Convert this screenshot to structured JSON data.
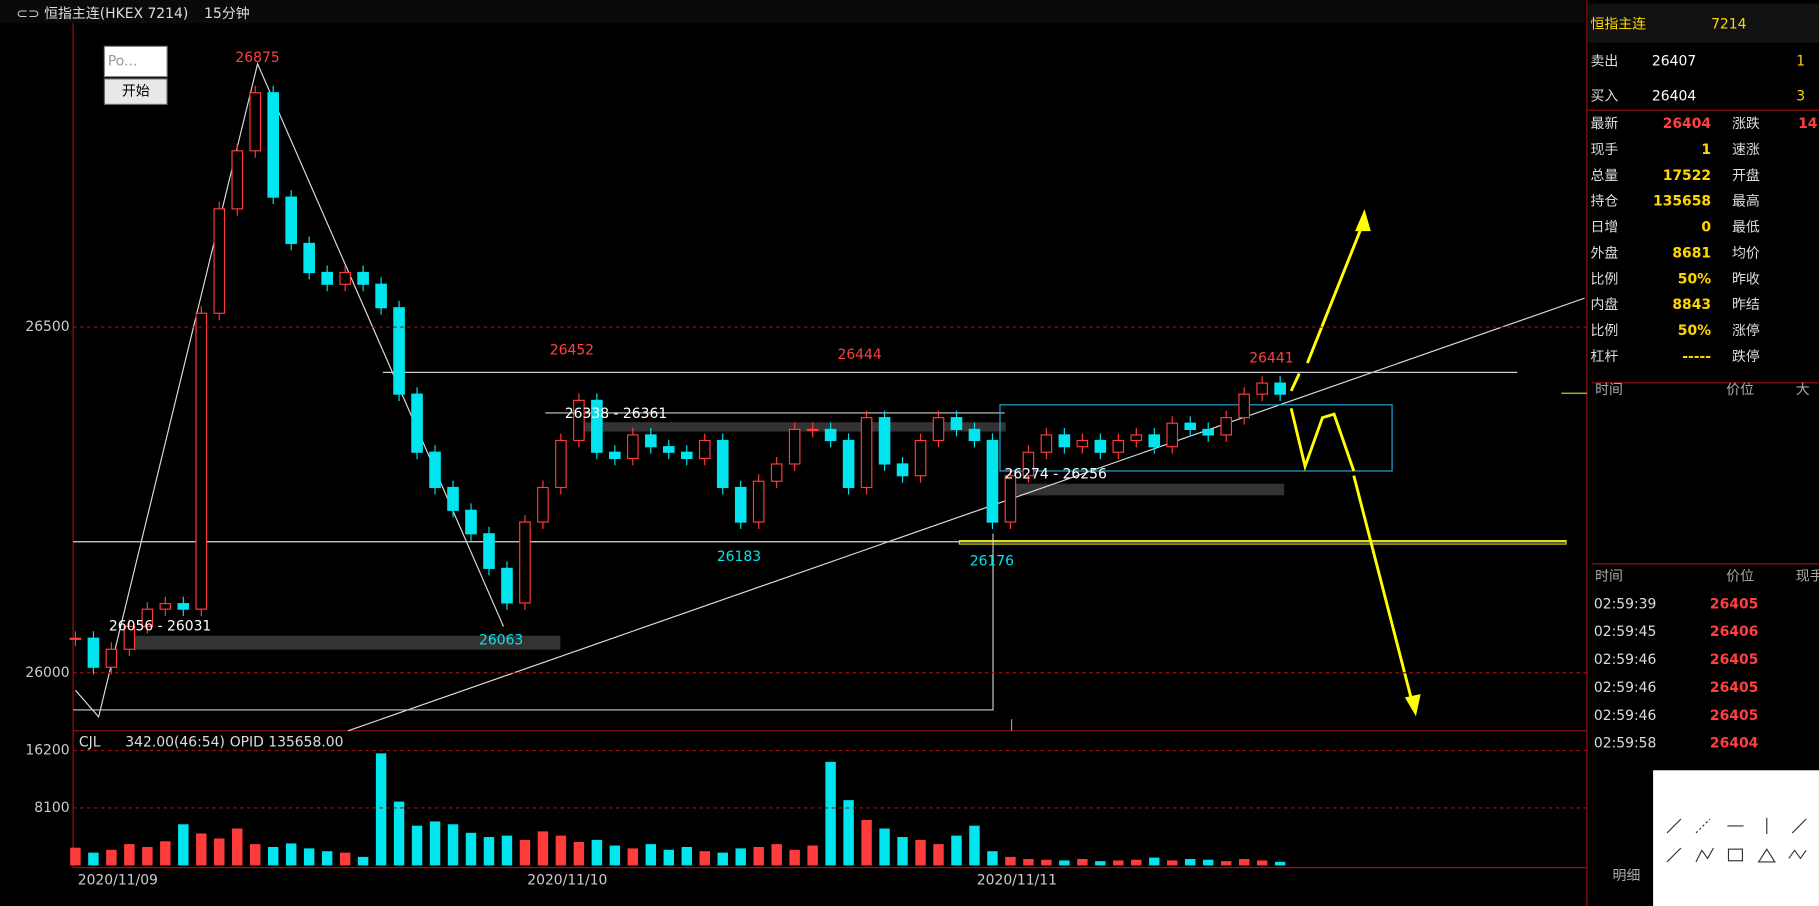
{
  "header": {
    "symbol": "恒指主连(HKEX 7214)",
    "period": "15分钟"
  },
  "widget": {
    "input": "Po...",
    "button": "开始"
  },
  "chart_data": {
    "type": "candlestick",
    "categories": [
      "2020/11/09",
      null,
      null,
      null,
      null,
      null,
      null,
      null,
      null,
      null,
      null,
      null,
      null,
      null,
      null,
      null,
      null,
      null,
      null,
      null,
      null,
      null,
      null,
      null,
      null,
      "2020/11/10",
      null,
      null,
      null,
      null,
      null,
      null,
      null,
      null,
      null,
      null,
      null,
      null,
      null,
      null,
      null,
      null,
      null,
      null,
      null,
      null,
      null,
      null,
      null,
      null,
      "2020/11/11",
      null,
      null,
      null,
      null,
      null,
      null,
      null,
      null,
      null,
      null,
      null,
      null,
      null,
      null,
      null,
      null,
      null
    ],
    "close": [
      26050,
      26008,
      26034,
      26067,
      26092,
      26100,
      26092,
      26520,
      26671,
      26755,
      26839,
      26688,
      26621,
      26579,
      26562,
      26579,
      26562,
      26528,
      26403,
      26319,
      26268,
      26235,
      26201,
      26151,
      26101,
      26218,
      26268,
      26336,
      26394,
      26319,
      26310,
      26344,
      26327,
      26319,
      26310,
      26336,
      26268,
      26218,
      26277,
      26302,
      26352,
      26352,
      26336,
      26268,
      26369,
      26302,
      26285,
      26336,
      26369,
      26352,
      26336,
      26218,
      26285,
      26319,
      26344,
      26327,
      26336,
      26319,
      26336,
      26344,
      26327,
      26361,
      26352,
      26344,
      26369,
      26403,
      26419,
      26403
    ],
    "volume": [
      2500,
      1800,
      2200,
      3000,
      2600,
      3400,
      5800,
      4500,
      3800,
      5200,
      3000,
      2600,
      3100,
      2400,
      2000,
      1800,
      1200,
      15800,
      9000,
      5600,
      6200,
      5800,
      4600,
      4000,
      4200,
      3600,
      4800,
      4200,
      3300,
      3600,
      2800,
      2400,
      3000,
      2200,
      2600,
      2000,
      1800,
      2400,
      2600,
      3000,
      2200,
      2800,
      14600,
      9200,
      6400,
      5200,
      4000,
      3600,
      3000,
      4200,
      5600,
      2000,
      1200,
      900,
      800,
      700,
      900,
      600,
      700,
      800,
      1100,
      700,
      900,
      800,
      600,
      900,
      700,
      500
    ],
    "up_color": "#ff3c3c",
    "down_color": "#00e5ee",
    "ylim": [
      25916,
      26953
    ],
    "yticks": [
      26000,
      26500
    ],
    "volume_ylim": [
      0,
      18650
    ],
    "volume_yticks": [
      16200,
      8100
    ],
    "grid": true,
    "annotations": [
      {
        "text": "26875",
        "color": "#ff4040"
      },
      {
        "text": "26452",
        "color": "#ff4040"
      },
      {
        "text": "26444",
        "color": "#ff4040"
      },
      {
        "text": "26441",
        "color": "#ff4040"
      },
      {
        "text": "26063",
        "color": "#00e5ee"
      },
      {
        "text": "26183",
        "color": "#00e5ee"
      },
      {
        "text": "26176",
        "color": "#00e5ee"
      },
      {
        "text": "26056 - 26031",
        "color": "#ffffff"
      },
      {
        "text": "26338 - 26361",
        "color": "#ffffff"
      },
      {
        "text": "26274 - 26256",
        "color": "#ffffff"
      }
    ]
  },
  "volume_header": {
    "indicator": "CJL",
    "value": "342.00(46:54)",
    "opid": "OPID 135658.00"
  },
  "quote": {
    "title": "恒指主连",
    "code": "7214",
    "ask": {
      "label": "卖出",
      "price": "26407",
      "size": "1"
    },
    "bid": {
      "label": "买入",
      "price": "26404",
      "size": "3"
    },
    "rows": [
      [
        "最新",
        "26404",
        "涨跌",
        "14"
      ],
      [
        "现手",
        "1",
        "速涨",
        ""
      ],
      [
        "总量",
        "17522",
        "开盘",
        ""
      ],
      [
        "持仓",
        "135658",
        "最高",
        ""
      ],
      [
        "日增",
        "0",
        "最低",
        ""
      ],
      [
        "外盘",
        "8681",
        "均价",
        ""
      ],
      [
        "比例",
        "50%",
        "昨收",
        ""
      ],
      [
        "内盘",
        "8843",
        "昨结",
        ""
      ],
      [
        "比例",
        "50%",
        "涨停",
        ""
      ],
      [
        "杠杆",
        "-----",
        "跌停",
        ""
      ]
    ]
  },
  "detail_header": [
    "时间",
    "价位",
    "大"
  ],
  "tick_header": [
    "时间",
    "价位",
    "现手"
  ],
  "ticks": [
    [
      "02:59:39",
      "26405"
    ],
    [
      "02:59:45",
      "26406"
    ],
    [
      "02:59:46",
      "26405"
    ],
    [
      "02:59:46",
      "26405"
    ],
    [
      "02:59:46",
      "26405"
    ],
    [
      "02:59:58",
      "26404"
    ]
  ],
  "footer": {
    "detail": "明细"
  }
}
